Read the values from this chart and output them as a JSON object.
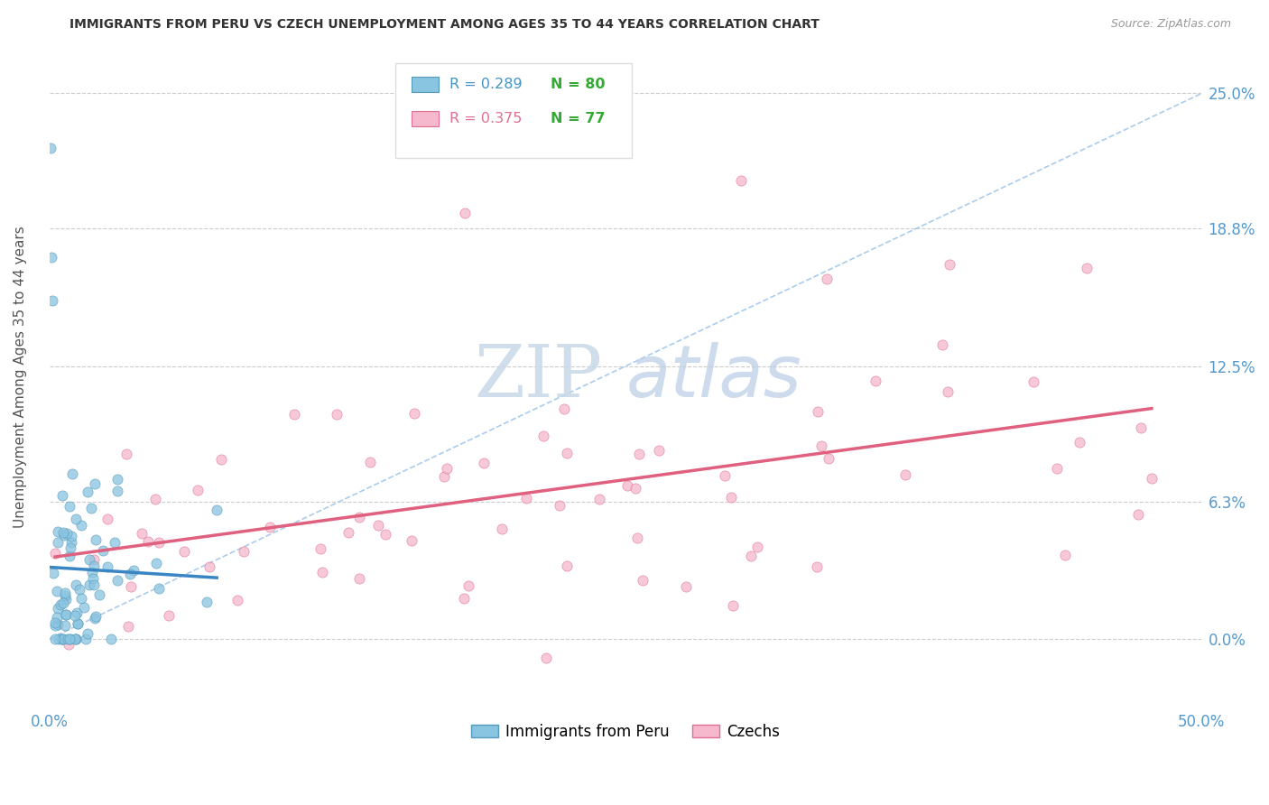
{
  "title": "IMMIGRANTS FROM PERU VS CZECH UNEMPLOYMENT AMONG AGES 35 TO 44 YEARS CORRELATION CHART",
  "source": "Source: ZipAtlas.com",
  "ylabel": "Unemployment Among Ages 35 to 44 years",
  "xlim": [
    0.0,
    0.5
  ],
  "ylim": [
    -0.03,
    0.27
  ],
  "yticks": [
    0.0,
    0.063,
    0.125,
    0.188,
    0.25
  ],
  "ytick_labels": [
    "0.0%",
    "6.3%",
    "12.5%",
    "18.8%",
    "25.0%"
  ],
  "xtick_labels": [
    "0.0%",
    "",
    "",
    "",
    "",
    "50.0%"
  ],
  "xticks": [
    0.0,
    0.1,
    0.2,
    0.3,
    0.4,
    0.5
  ],
  "color_blue": "#89c4e0",
  "color_pink": "#f5b8cc",
  "color_blue_text": "#4393c3",
  "color_pink_text": "#e07090",
  "color_green": "#33aa33",
  "color_axis": "#5599cc",
  "color_grid": "#cccccc",
  "peru_R": 0.289,
  "peru_N": 80,
  "czech_R": 0.375,
  "czech_N": 77,
  "figsize": [
    14.06,
    8.92
  ],
  "dpi": 100
}
